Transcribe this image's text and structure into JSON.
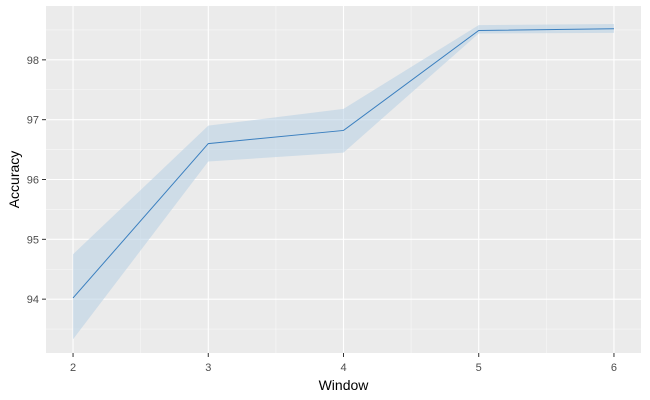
{
  "chart_data": {
    "type": "line",
    "title": "",
    "xlabel": "Window",
    "ylabel": "Accuracy",
    "x": [
      2,
      3,
      4,
      5,
      6
    ],
    "xlim": [
      1.8,
      6.2
    ],
    "ylim": [
      93.1,
      98.9
    ],
    "x_ticks": [
      2,
      3,
      4,
      5,
      6
    ],
    "y_ticks": [
      94,
      95,
      96,
      97,
      98
    ],
    "grid": true,
    "legend": "none",
    "series": [
      {
        "values": [
          94.02,
          96.6,
          96.82,
          98.49,
          98.52
        ],
        "lower": [
          93.33,
          96.3,
          96.45,
          98.44,
          98.45
        ],
        "upper": [
          94.75,
          96.9,
          97.18,
          98.58,
          98.6
        ],
        "line_color": "#3a7fbf",
        "band_color": "#b7cfe3"
      }
    ],
    "panel_background": "#ebebeb"
  }
}
